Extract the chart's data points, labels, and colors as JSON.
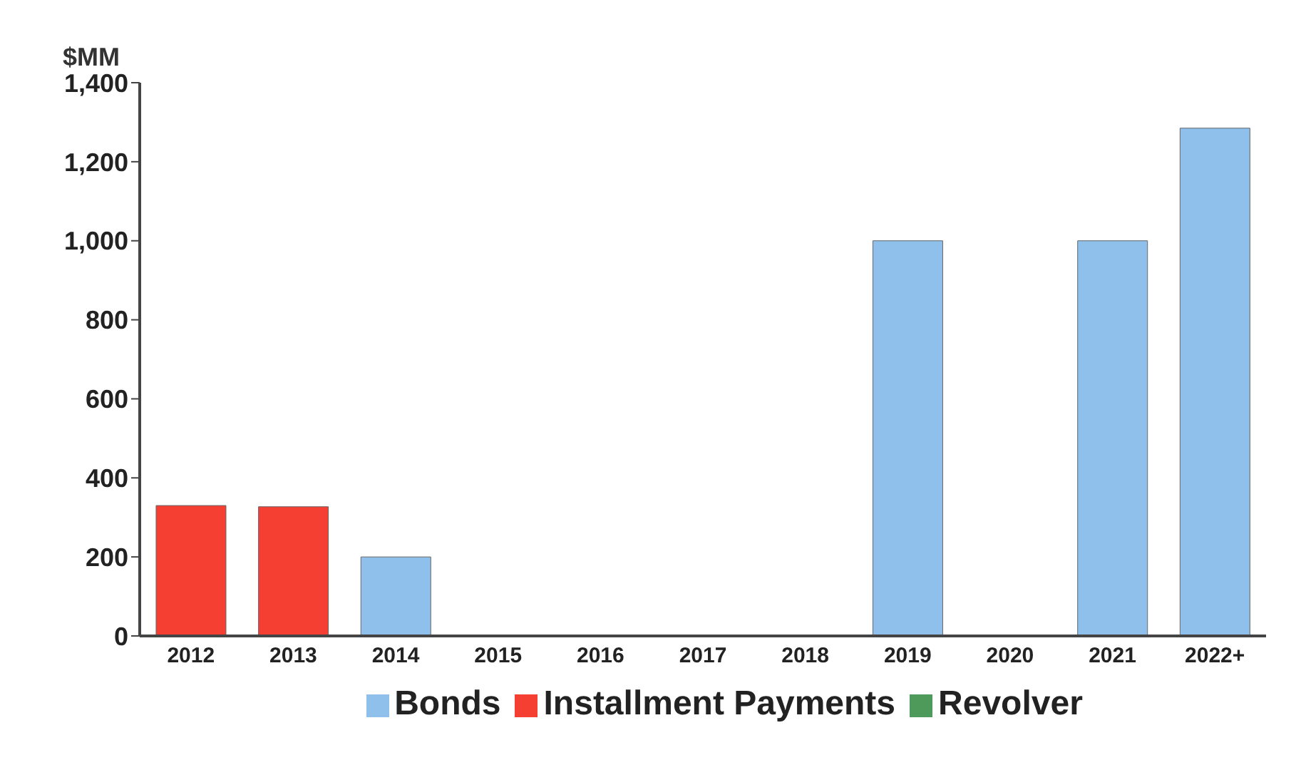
{
  "chart_data": {
    "type": "bar",
    "ylabel": "$MM",
    "categories": [
      "2012",
      "2013",
      "2014",
      "2015",
      "2016",
      "2017",
      "2018",
      "2019",
      "2020",
      "2021",
      "2022+"
    ],
    "series": [
      {
        "name": "Installment Payments",
        "color": "#f43f32",
        "values": [
          330,
          327,
          null,
          null,
          null,
          null,
          null,
          null,
          null,
          null,
          null
        ]
      },
      {
        "name": "Bonds",
        "color": "#8fc0ec",
        "values": [
          null,
          null,
          200,
          null,
          null,
          null,
          null,
          1000,
          null,
          1000,
          1285
        ]
      },
      {
        "name": "Revolver",
        "color": "#4e9a5a",
        "values": [
          null,
          null,
          null,
          null,
          null,
          null,
          null,
          null,
          null,
          null,
          null
        ]
      }
    ],
    "stacked": true,
    "ylim": [
      0,
      1400
    ],
    "yticks": [
      {
        "value": 0,
        "label": "0"
      },
      {
        "value": 200,
        "label": "200"
      },
      {
        "value": 400,
        "label": "400"
      },
      {
        "value": 600,
        "label": "600"
      },
      {
        "value": 800,
        "label": "800"
      },
      {
        "value": 1000,
        "label": "1,000"
      },
      {
        "value": 1200,
        "label": "1,200"
      },
      {
        "value": 1400,
        "label": "1,400"
      }
    ],
    "grid": false,
    "legend": "bottom"
  }
}
